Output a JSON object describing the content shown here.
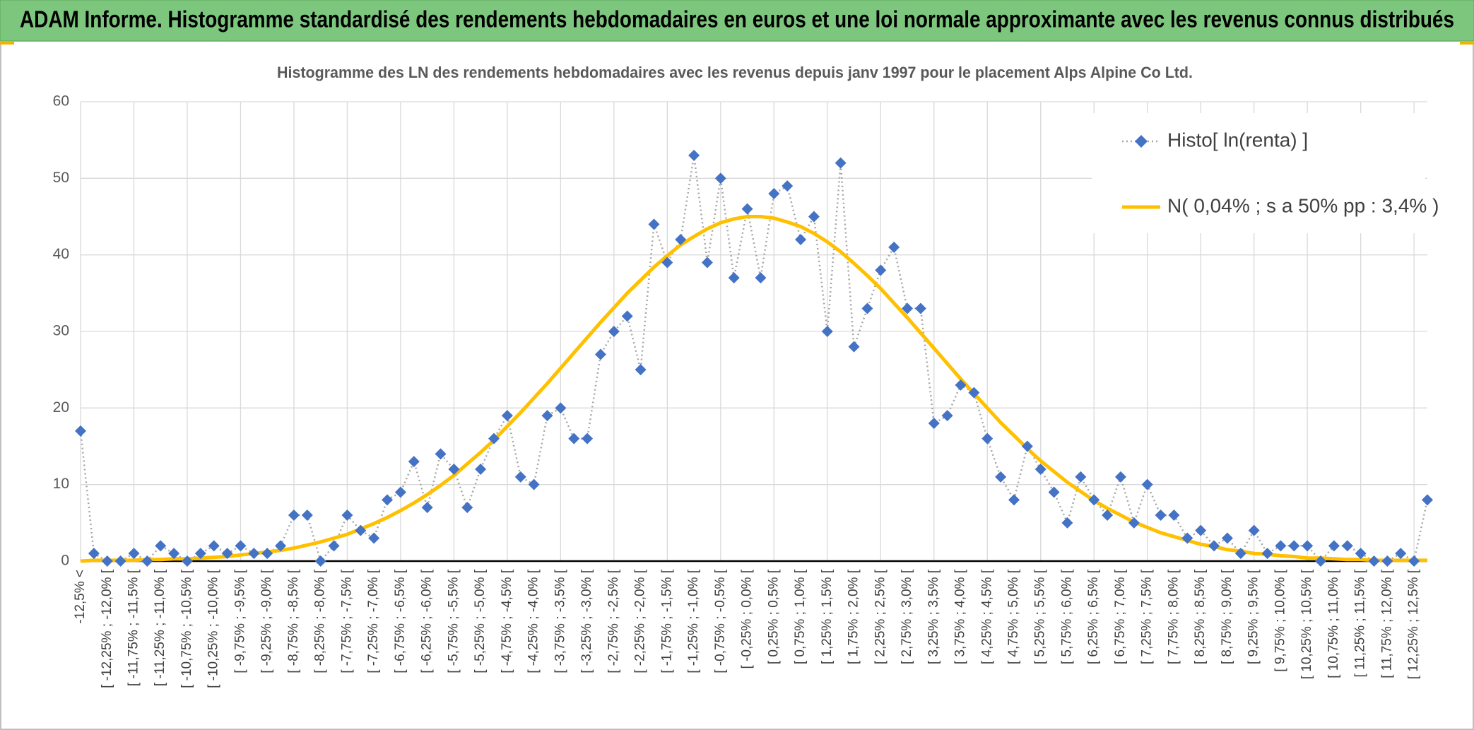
{
  "chart_data": {
    "type": "line",
    "title": "ADAM Informe. Histogramme standardisé des rendements hebdomadaires en euros et une loi normale approximante avec les revenus connus distribués",
    "subtitle": "Histogramme des LN des rendements hebdomadaires avec les revenus depuis janv 1997 pour le placement Alps Alpine Co Ltd.",
    "categories": [
      "-12,5% <",
      null,
      "[ -12,25% ; -12,0% [",
      null,
      "[ -11,75% ; -11,5% [",
      null,
      "[ -11,25% ; -11,0% [",
      null,
      "[ -10,75% ; -10,5% [",
      null,
      "[ -10,25% ; -10,0% [",
      null,
      "[ -9,75% ; -9,5% [",
      null,
      "[ -9,25% ; -9,0% [",
      null,
      "[ -8,75% ; -8,5% [",
      null,
      "[ -8,25% ; -8,0% [",
      null,
      "[ -7,75% ; -7,5% [",
      null,
      "[ -7,25% ; -7,0% [",
      null,
      "[ -6,75% ; -6,5% [",
      null,
      "[ -6,25% ; -6,0% [",
      null,
      "[ -5,75% ; -5,5% [",
      null,
      "[ -5,25% ; -5,0% [",
      null,
      "[ -4,75% ; -4,5% [",
      null,
      "[ -4,25% ; -4,0% [",
      null,
      "[ -3,75% ; -3,5% [",
      null,
      "[ -3,25% ; -3,0% [",
      null,
      "[ -2,75% ; -2,5% [",
      null,
      "[ -2,25% ; -2,0% [",
      null,
      "[ -1,75% ; -1,5% [",
      null,
      "[ -1,25% ; -1,0% [",
      null,
      "[ -0,75% ; -0,5% [",
      null,
      "[ -0,25% ; 0,0% [",
      null,
      "[ 0,25% ; 0,5% [",
      null,
      "[ 0,75% ; 1,0% [",
      null,
      "[ 1,25% ; 1,5% [",
      null,
      "[ 1,75% ; 2,0% [",
      null,
      "[ 2,25% ; 2,5% [",
      null,
      "[ 2,75% ; 3,0% [",
      null,
      "[ 3,25% ; 3,5% [",
      null,
      "[ 3,75% ; 4,0% [",
      null,
      "[ 4,25% ; 4,5% [",
      null,
      "[ 4,75% ; 5,0% [",
      null,
      "[ 5,25% ; 5,5% [",
      null,
      "[ 5,75% ; 6,0% [",
      null,
      "[ 6,25% ; 6,5% [",
      null,
      "[ 6,75% ; 7,0% [",
      null,
      "[ 7,25% ; 7,5% [",
      null,
      "[ 7,75% ; 8,0% [",
      null,
      "[ 8,25% ; 8,5% [",
      null,
      "[ 8,75% ; 9,0% [",
      null,
      "[ 9,25% ; 9,5% [",
      null,
      "[ 9,75% ; 10,0% [",
      null,
      "[ 10,25% ; 10,5% [",
      null,
      "[ 10,75% ; 11,0% [",
      null,
      "[ 11,25% ; 11,5% [",
      null,
      "[ 11,75% ; 12,0% [",
      null,
      "[ 12,25% ; 12,5% [",
      null
    ],
    "series": [
      {
        "name": "Histo[ ln(renta) ]",
        "color": "#4472c4",
        "line_color": "#a6a6a6",
        "marker": "diamond",
        "values": [
          17,
          1,
          0,
          0,
          1,
          0,
          2,
          1,
          0,
          1,
          2,
          1,
          2,
          1,
          1,
          2,
          6,
          6,
          0,
          2,
          6,
          4,
          3,
          8,
          9,
          13,
          7,
          14,
          12,
          7,
          12,
          16,
          19,
          11,
          10,
          19,
          20,
          16,
          16,
          27,
          30,
          32,
          25,
          44,
          39,
          42,
          53,
          39,
          50,
          37,
          46,
          37,
          48,
          49,
          42,
          45,
          30,
          52,
          28,
          33,
          38,
          41,
          33,
          33,
          18,
          19,
          23,
          22,
          16,
          11,
          8,
          15,
          12,
          9,
          5,
          11,
          8,
          6,
          11,
          5,
          10,
          6,
          6,
          3,
          4,
          2,
          3,
          1,
          4,
          1,
          2,
          2,
          2,
          0,
          2,
          2,
          1,
          0,
          0,
          1,
          0,
          8
        ]
      },
      {
        "name": "N( 0,04% ; s a 50% pp : 3,4% )",
        "color": "#ffc000",
        "values": [
          0.0,
          0.1,
          0.1,
          0.1,
          0.1,
          0.2,
          0.2,
          0.3,
          0.3,
          0.4,
          0.5,
          0.6,
          0.8,
          1.0,
          1.2,
          1.4,
          1.7,
          2.1,
          2.5,
          3.0,
          3.5,
          4.2,
          4.9,
          5.7,
          6.6,
          7.6,
          8.7,
          9.9,
          11.2,
          12.7,
          14.2,
          15.8,
          17.6,
          19.4,
          21.3,
          23.2,
          25.2,
          27.2,
          29.2,
          31.2,
          33.1,
          35.0,
          36.7,
          38.4,
          39.9,
          41.3,
          42.4,
          43.4,
          44.2,
          44.7,
          45.0,
          45.0,
          44.8,
          44.3,
          43.7,
          42.8,
          41.7,
          40.4,
          38.9,
          37.3,
          35.6,
          33.7,
          31.8,
          29.8,
          27.8,
          25.8,
          23.8,
          21.9,
          20.0,
          18.1,
          16.4,
          14.7,
          13.1,
          11.7,
          10.3,
          9.1,
          7.9,
          6.9,
          6.0,
          5.1,
          4.4,
          3.7,
          3.2,
          2.7,
          2.2,
          1.9,
          1.5,
          1.3,
          1.0,
          0.9,
          0.7,
          0.6,
          0.4,
          0.4,
          0.3,
          0.2,
          0.2,
          0.1,
          0.1,
          0.1,
          0.1,
          0.1
        ]
      }
    ],
    "ylim": [
      0,
      60
    ],
    "yticks": [
      0,
      10,
      20,
      30,
      40,
      50,
      60
    ],
    "grid": true,
    "legend": "top-right"
  }
}
